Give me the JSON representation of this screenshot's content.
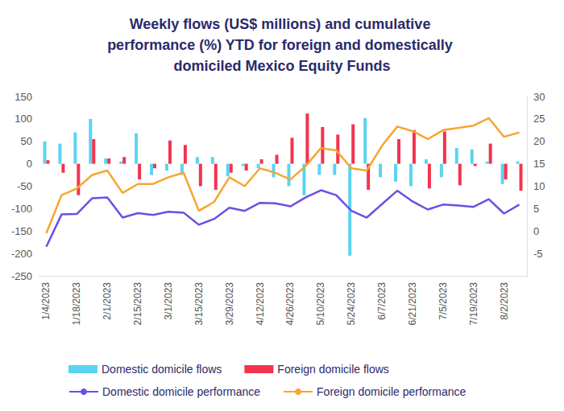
{
  "chart_data": {
    "type": "bar",
    "title": "Weekly flows (US$ millions) and cumulative performance (%) YTD for foreign and domestically domiciled Mexico Equity Funds",
    "categories": [
      "1/4/2023",
      null,
      "1/18/2023",
      null,
      "2/1/2023",
      null,
      "2/15/2023",
      null,
      "3/1/2023",
      null,
      "3/15/2023",
      null,
      "3/29/2023",
      null,
      "4/12/2023",
      null,
      "4/26/2023",
      null,
      "5/10/2023",
      null,
      "5/24/2023",
      null,
      "6/7/2023",
      null,
      "6/21/2023",
      null,
      "7/5/2023",
      null,
      "7/19/2023",
      null,
      "8/2/2023",
      null
    ],
    "series": [
      {
        "name": "Domestic domicile flows",
        "type": "bar",
        "color": "#5ad4f2",
        "values": [
          50,
          45,
          70,
          100,
          12,
          5,
          68,
          -25,
          -15,
          -25,
          15,
          15,
          -28,
          -5,
          -10,
          -30,
          -50,
          -70,
          -25,
          -25,
          -205,
          102,
          -30,
          -40,
          -50,
          10,
          -30,
          35,
          32,
          5,
          -45,
          5
        ]
      },
      {
        "name": "Foreign domicile flows",
        "type": "bar",
        "color": "#f2344f",
        "values": [
          8,
          -20,
          -70,
          55,
          12,
          15,
          -35,
          -10,
          52,
          42,
          -50,
          -58,
          -20,
          -15,
          10,
          20,
          58,
          112,
          82,
          65,
          88,
          -58,
          0,
          55,
          75,
          -55,
          72,
          -48,
          -5,
          45,
          -35,
          -60
        ]
      },
      {
        "name": "Domestic domicile performance",
        "type": "line",
        "axis": "y2",
        "color": "#6a50e6",
        "values": [
          -3.5,
          3.7,
          3.8,
          7.3,
          7.5,
          3.0,
          4.0,
          3.6,
          4.3,
          4.1,
          1.4,
          2.7,
          5.2,
          4.5,
          6.3,
          6.2,
          5.5,
          7.5,
          9.1,
          8.0,
          4.5,
          3.0,
          6.0,
          9.0,
          6.6,
          4.8,
          5.9,
          5.7,
          5.4,
          7.1,
          3.9,
          5.9
        ]
      },
      {
        "name": "Foreign domicile performance",
        "type": "line",
        "axis": "y2",
        "color": "#f7a531",
        "values": [
          -0.5,
          8.0,
          9.5,
          12.5,
          13.5,
          8.5,
          10.5,
          10.5,
          12.0,
          13.0,
          4.5,
          6.5,
          12.0,
          10.0,
          14.0,
          13.0,
          11.5,
          14.5,
          18.5,
          18.0,
          14.0,
          13.5,
          19.0,
          23.3,
          22.3,
          20.5,
          22.5,
          23.0,
          23.5,
          25.2,
          21.0,
          22.0
        ]
      }
    ],
    "ylim": [
      -250,
      150
    ],
    "yticks": [
      -250,
      -200,
      -150,
      -100,
      -50,
      0,
      50,
      100,
      150
    ],
    "y2lim": [
      -10,
      30
    ],
    "y2ticks": [
      -5,
      0,
      5,
      10,
      15,
      20,
      25,
      30
    ],
    "grid": false,
    "legend": "bottom",
    "stacked": false
  }
}
